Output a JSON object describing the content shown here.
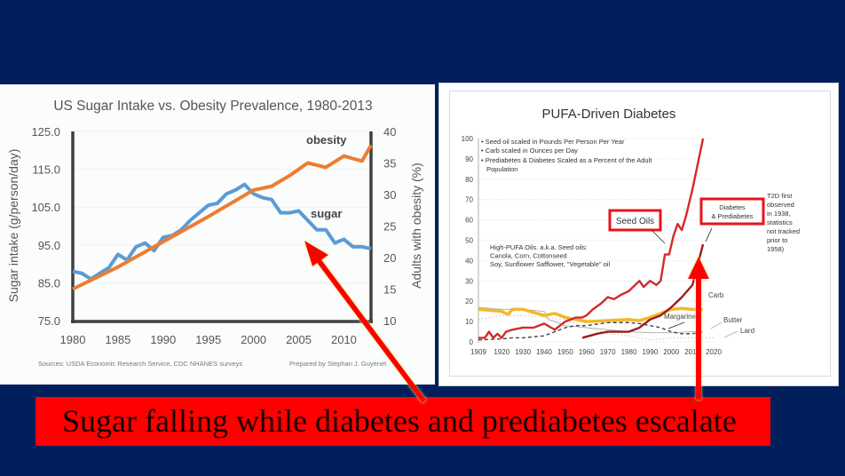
{
  "slide": {
    "background_color": "#001f5c",
    "caption": "Sugar falling while diabetes and prediabetes escalate",
    "caption_bg": "#ff0000",
    "arrow_color": "#ff0000"
  },
  "chart_data": [
    {
      "type": "line",
      "title": "US Sugar Intake vs. Obesity Prevalence, 1980-2013",
      "xlabel": "",
      "ylabel": "Sugar intake (g/person/day)",
      "y2label": "Adults with obesity (%)",
      "xlim": [
        1980,
        2013
      ],
      "ylim": [
        75,
        125
      ],
      "y2lim": [
        10,
        40
      ],
      "x_ticks": [
        "1980",
        "1985",
        "1990",
        "1995",
        "2000",
        "2005",
        "2010"
      ],
      "y_ticks": [
        "125.0",
        "115.0",
        "105.0",
        "95.0",
        "85.0",
        "75.0"
      ],
      "y2_ticks": [
        "40",
        "35",
        "30",
        "25",
        "20",
        "15",
        "10"
      ],
      "grid": true,
      "series": [
        {
          "name": "sugar",
          "axis": "left",
          "color": "#5b9bd5",
          "x": [
            1980,
            1981,
            1982,
            1983,
            1984,
            1985,
            1986,
            1987,
            1988,
            1989,
            1990,
            1991,
            1992,
            1993,
            1994,
            1995,
            1996,
            1997,
            1998,
            1999,
            2000,
            2001,
            2002,
            2003,
            2004,
            2005,
            2006,
            2007,
            2008,
            2009,
            2010,
            2011,
            2012,
            2013
          ],
          "values": [
            88,
            87.5,
            86,
            87.5,
            89,
            92.5,
            91,
            94.5,
            95.5,
            93.5,
            97,
            97.5,
            99,
            101.5,
            103.5,
            105.5,
            106,
            108.5,
            109.5,
            111,
            108.5,
            107.5,
            107,
            103.5,
            103.5,
            104,
            101.5,
            99,
            99,
            95.5,
            96.5,
            94.5,
            94.5,
            94
          ]
        },
        {
          "name": "obesity",
          "axis": "right",
          "color": "#ed7d31",
          "x": [
            1980,
            1985,
            1990,
            1995,
            2000,
            2002,
            2004,
            2006,
            2008,
            2010,
            2012,
            2013
          ],
          "values": [
            15,
            18.5,
            22.5,
            26.5,
            30.7,
            31.3,
            33,
            35,
            34.3,
            36.1,
            35.3,
            37.8
          ]
        }
      ],
      "annotations": [
        "obesity",
        "sugar"
      ],
      "footer_left": "Sources: USDA Economic Research Service, CDC NHANES surveys",
      "footer_right": "Prepared by Stephan J. Guyenet"
    },
    {
      "type": "line",
      "title": "PUFA-Driven Diabetes",
      "xlim": [
        1909,
        2020
      ],
      "ylim": [
        0,
        100
      ],
      "x_ticks": [
        "1909",
        "1920",
        "1930",
        "1940",
        "1950",
        "1960",
        "1970",
        "1980",
        "1990",
        "2000",
        "2010",
        "2020"
      ],
      "y_ticks": [
        "100",
        "90",
        "80",
        "70",
        "60",
        "50",
        "40",
        "30",
        "20",
        "10",
        "0"
      ],
      "grid": true,
      "notes": [
        "Seed oil scaled in Pounds Per Person Per Year",
        "Carb scaled in Ounces per Day",
        "Prediabetes & Diabetes Scaled as a Percent of the Adult Population"
      ],
      "pufa_note": [
        "High-PUFA Oils. a.k.a. Seed oils:",
        "Canola, Corn, Cottonseed",
        "Soy, Sunflower Safflower, \"Vegetable\" oil"
      ],
      "side_note": [
        "T2D first",
        "observed",
        "in 1938,",
        "statistics",
        "not tracked",
        "prior to",
        "1958)"
      ],
      "labels": {
        "seed_oils": "Seed Oils",
        "diabetes_1": "Diabetes",
        "diabetes_2": "& Prediabetes",
        "carb": "Carb",
        "margarine": "Margarine",
        "butter": "Butter",
        "lard": "Lard"
      },
      "series": [
        {
          "name": "Seed Oils",
          "color": "#d42a2a",
          "x": [
            1909,
            1912,
            1914,
            1916,
            1918,
            1920,
            1922,
            1925,
            1930,
            1935,
            1940,
            1945,
            1950,
            1955,
            1958,
            1960,
            1963,
            1967,
            1970,
            1973,
            1976,
            1980,
            1982,
            1985,
            1987,
            1990,
            1993,
            1995,
            1997,
            1999,
            2001,
            2003,
            2005,
            2007,
            2010,
            2012,
            2015
          ],
          "values": [
            2,
            2,
            5,
            2,
            4,
            2,
            5,
            6,
            7,
            7,
            9,
            6,
            10,
            12,
            12,
            13,
            16,
            19,
            22,
            21,
            23,
            25,
            27,
            30,
            27,
            30,
            28,
            30,
            43,
            43,
            52,
            58,
            55,
            62,
            75,
            85,
            100
          ]
        },
        {
          "name": "Diabetes & Prediabetes",
          "color": "#9b1c1c",
          "x": [
            1958,
            1965,
            1970,
            1975,
            1980,
            1985,
            1990,
            1995,
            2000,
            2005,
            2010,
            2015
          ],
          "values": [
            2,
            4,
            5,
            5,
            5,
            7,
            11,
            13,
            17,
            22,
            28,
            48
          ]
        },
        {
          "name": "Carb",
          "color": "#f2b82a",
          "x": [
            1909,
            1915,
            1920,
            1923,
            1925,
            1930,
            1935,
            1940,
            1945,
            1950,
            1955,
            1960,
            1970,
            1980,
            1985,
            1990,
            1995,
            2000,
            2005,
            2010,
            2015
          ],
          "values": [
            16,
            15.5,
            15,
            13.5,
            16,
            16,
            14.5,
            13,
            14,
            12,
            11,
            10,
            10.5,
            11,
            10.5,
            12,
            14,
            16,
            16.5,
            16,
            16
          ]
        },
        {
          "name": "Margarine",
          "color": "#444444",
          "x": [
            1909,
            1920,
            1925,
            1930,
            1935,
            1940,
            1945,
            1950,
            1955,
            1960,
            1970,
            1980,
            1985,
            1990,
            1995,
            2000,
            2005,
            2010,
            2015
          ],
          "values": [
            1,
            1.5,
            2,
            2,
            2.5,
            3,
            5,
            7,
            8,
            8,
            9.5,
            9.5,
            9,
            8,
            7,
            5,
            4,
            4,
            5
          ]
        },
        {
          "name": "Butter",
          "color": "#aaaaaa",
          "x": [
            1909,
            1920,
            1930,
            1940,
            1942,
            1945,
            1950,
            1960,
            1970,
            1980,
            1990,
            2000,
            2010,
            2015
          ],
          "values": [
            17,
            16,
            16,
            15,
            11,
            10,
            8,
            7,
            6,
            5,
            4.5,
            4.5,
            5,
            5
          ]
        },
        {
          "name": "Lard",
          "color": "#aaaaaa",
          "x": [
            1909,
            1920,
            1930,
            1940,
            1950,
            1960,
            1970,
            1980,
            1990,
            2000,
            2010,
            2020
          ],
          "values": [
            11,
            13,
            13,
            12,
            11,
            7,
            4,
            3,
            1,
            2,
            2,
            2
          ]
        }
      ]
    }
  ]
}
